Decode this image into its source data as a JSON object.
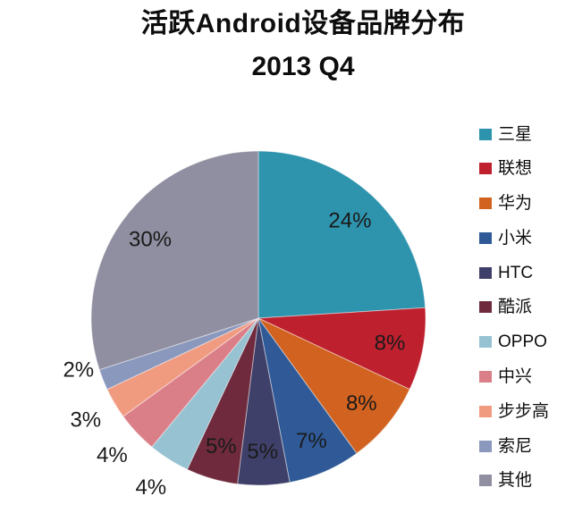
{
  "chart_data": {
    "type": "pie",
    "title": "活跃Android设备品牌分布",
    "subtitle": "2013 Q4",
    "unit": "%",
    "start_angle_deg": 0,
    "direction": "clockwise",
    "legend_position": "right",
    "label_color": "#1A1A1A",
    "slices": [
      {
        "label": "三星",
        "value": 24,
        "display": "24%",
        "color": "#2E93AD",
        "label_inside": true
      },
      {
        "label": "联想",
        "value": 8,
        "display": "8%",
        "color": "#BE202E",
        "label_inside": true
      },
      {
        "label": "华为",
        "value": 8,
        "display": "8%",
        "color": "#D2621F",
        "label_inside": true
      },
      {
        "label": "小米",
        "value": 7,
        "display": "7%",
        "color": "#2F5A97",
        "label_inside": true
      },
      {
        "label": "HTC",
        "value": 5,
        "display": "5%",
        "color": "#3F4069",
        "label_inside": true
      },
      {
        "label": "酷派",
        "value": 5,
        "display": "5%",
        "color": "#6F2B3D",
        "label_inside": true
      },
      {
        "label": "OPPO",
        "value": 4,
        "display": "4%",
        "color": "#97C2D2",
        "label_inside": false
      },
      {
        "label": "中兴",
        "value": 4,
        "display": "4%",
        "color": "#DA7F88",
        "label_inside": false
      },
      {
        "label": "步步高",
        "value": 3,
        "display": "3%",
        "color": "#F09B80",
        "label_inside": false
      },
      {
        "label": "索尼",
        "value": 2,
        "display": "2%",
        "color": "#8B98BD",
        "label_inside": false,
        "label_r_mult": 1.12,
        "label_deg_offset": 5.5
      },
      {
        "label": "其他",
        "value": 30,
        "display": "30%",
        "color": "#908FA1",
        "label_inside": true
      }
    ]
  }
}
